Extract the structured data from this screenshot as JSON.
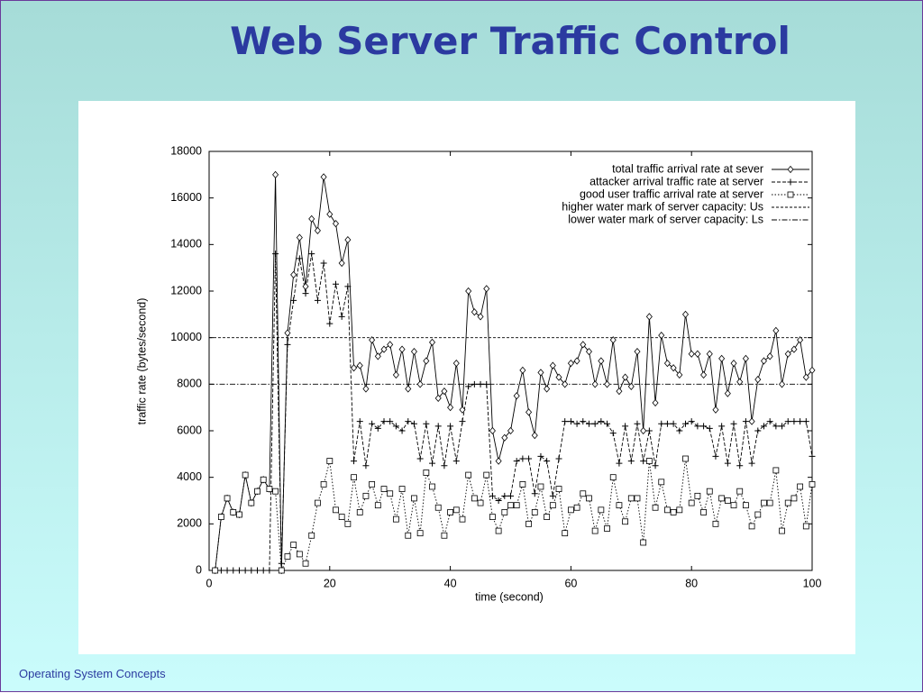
{
  "slide": {
    "title": "Web Server Traffic Control",
    "footer": "Operating System Concepts"
  },
  "chart_data": {
    "type": "line",
    "xlabel": "time (second)",
    "ylabel": "traffic rate (bytes/second)",
    "xlim": [
      0,
      100
    ],
    "ylim": [
      0,
      18000
    ],
    "xticks": [
      0,
      20,
      40,
      60,
      80,
      100
    ],
    "yticks": [
      0,
      2000,
      4000,
      6000,
      8000,
      10000,
      12000,
      14000,
      16000,
      18000
    ],
    "x": [
      1,
      2,
      3,
      4,
      5,
      6,
      7,
      8,
      9,
      10,
      11,
      12,
      13,
      14,
      15,
      16,
      17,
      18,
      19,
      20,
      21,
      22,
      23,
      24,
      25,
      26,
      27,
      28,
      29,
      30,
      31,
      32,
      33,
      34,
      35,
      36,
      37,
      38,
      39,
      40,
      41,
      42,
      43,
      44,
      45,
      46,
      47,
      48,
      49,
      50,
      51,
      52,
      53,
      54,
      55,
      56,
      57,
      58,
      59,
      60,
      61,
      62,
      63,
      64,
      65,
      66,
      67,
      68,
      69,
      70,
      71,
      72,
      73,
      74,
      75,
      76,
      77,
      78,
      79,
      80,
      81,
      82,
      83,
      84,
      85,
      86,
      87,
      88,
      89,
      90,
      91,
      92,
      93,
      94,
      95,
      96,
      97,
      98,
      99,
      100
    ],
    "series": [
      {
        "name": "total traffic arrival rate at sever",
        "color": "#000000",
        "marker": "diamond",
        "dash": "none",
        "values": [
          0,
          2300,
          3100,
          2500,
          2400,
          4100,
          2900,
          3400,
          3900,
          3500,
          17000,
          0,
          10200,
          12700,
          14300,
          12200,
          15100,
          14600,
          16900,
          15300,
          14900,
          13200,
          14200,
          8700,
          8800,
          7800,
          9900,
          9200,
          9500,
          9700,
          8400,
          9500,
          7800,
          9400,
          8000,
          9000,
          9800,
          7400,
          7700,
          7000,
          8900,
          6900,
          12000,
          11100,
          10900,
          12100,
          6000,
          4700,
          5700,
          6000,
          7500,
          8600,
          6800,
          5800,
          8500,
          7800,
          8800,
          8300,
          8000,
          8900,
          9000,
          9700,
          9400,
          8000,
          9000,
          8000,
          9900,
          7700,
          8300,
          7900,
          9400,
          6000,
          10900,
          7200,
          10100,
          8900,
          8700,
          8400,
          11000,
          9300,
          9300,
          8400,
          9300,
          6900,
          9100,
          7600,
          8900,
          8100,
          9100,
          6400,
          8200,
          9000,
          9200,
          10300,
          8000,
          9300,
          9500,
          9900,
          8300,
          8600
        ]
      },
      {
        "name": "attacker arrival traffic rate at server",
        "color": "#000000",
        "marker": "plus",
        "dash": "4,2",
        "values": [
          0,
          0,
          0,
          0,
          0,
          0,
          0,
          0,
          0,
          0,
          13600,
          300,
          9700,
          11600,
          13400,
          11900,
          13600,
          11600,
          13200,
          10600,
          12300,
          10900,
          12200,
          4700,
          6400,
          4500,
          6300,
          6100,
          6400,
          6400,
          6200,
          6000,
          6400,
          6300,
          4800,
          6300,
          4600,
          6200,
          4500,
          6200,
          4700,
          6400,
          7900,
          8000,
          8000,
          8000,
          3200,
          3000,
          3200,
          3200,
          4700,
          4800,
          4800,
          3300,
          4900,
          4700,
          3200,
          4800,
          6400,
          6400,
          6300,
          6400,
          6300,
          6300,
          6400,
          6300,
          5900,
          4600,
          6200,
          4700,
          6300,
          4700,
          6000,
          4500,
          6300,
          6300,
          6300,
          6000,
          6300,
          6400,
          6200,
          6200,
          6100,
          4900,
          6200,
          4600,
          6300,
          4500,
          6400,
          4600,
          6000,
          6200,
          6400,
          6200,
          6200,
          6400,
          6400,
          6400,
          6400,
          4900
        ]
      },
      {
        "name": "good user traffic arrival rate at server",
        "color": "#000000",
        "marker": "square",
        "dash": "1.5,2",
        "values": [
          0,
          2300,
          3100,
          2500,
          2400,
          4100,
          2900,
          3400,
          3900,
          3500,
          3400,
          0,
          600,
          1100,
          700,
          300,
          1500,
          2900,
          3700,
          4700,
          2600,
          2300,
          2000,
          4000,
          2500,
          3200,
          3700,
          2800,
          3500,
          3300,
          2200,
          3500,
          1500,
          3100,
          1600,
          4200,
          3600,
          2700,
          1500,
          2500,
          2600,
          2200,
          4100,
          3100,
          2900,
          4100,
          2300,
          1700,
          2500,
          2800,
          2800,
          3700,
          2000,
          2500,
          3600,
          2300,
          2800,
          3500,
          1600,
          2600,
          2700,
          3300,
          3100,
          1700,
          2600,
          1800,
          4000,
          2800,
          2100,
          3100,
          3100,
          1200,
          4700,
          2700,
          3800,
          2600,
          2500,
          2600,
          4800,
          2900,
          3200,
          2500,
          3400,
          2000,
          3100,
          3000,
          2800,
          3400,
          2800,
          1900,
          2400,
          2900,
          2900,
          4300,
          1700,
          2900,
          3100,
          3600,
          1900,
          3700
        ]
      }
    ],
    "reference_lines": [
      {
        "name": "higher water mark of server capacity: Us",
        "value": 10000,
        "dash": "3,2"
      },
      {
        "name": "lower water mark of server capacity: Ls",
        "value": 8000,
        "dash": "6,2,1.5,2"
      }
    ]
  }
}
